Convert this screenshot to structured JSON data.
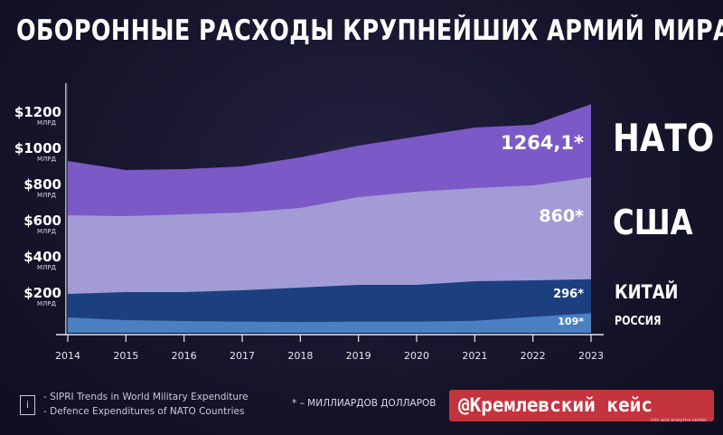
{
  "title": "ОБОРОННЫЕ РАСХОДЫ КРУПНЕЙШИХ АРМИЙ МИРА",
  "chart_data": {
    "type": "area",
    "x": [
      2014,
      2015,
      2016,
      2017,
      2018,
      2019,
      2020,
      2021,
      2022,
      2023
    ],
    "ylim": [
      0,
      1300
    ],
    "ytick_labels": [
      {
        "value": 1200,
        "label": "$1200",
        "unit": "МЛРД"
      },
      {
        "value": 1000,
        "label": "$1000",
        "unit": "МЛРД"
      },
      {
        "value": 800,
        "label": "$800",
        "unit": "МЛРД"
      },
      {
        "value": 600,
        "label": "$600",
        "unit": "МЛРД"
      },
      {
        "value": 400,
        "label": "$400",
        "unit": "МЛРД"
      },
      {
        "value": 200,
        "label": "$200",
        "unit": "МЛРД"
      }
    ],
    "series": [
      {
        "name": "НАТО",
        "color": "#7b59c7",
        "value_label": "1264,1*",
        "values": [
          950,
          900,
          905,
          920,
          970,
          1035,
          1085,
          1135,
          1150,
          1264.1
        ]
      },
      {
        "name": "США",
        "color": "#a39bd6",
        "value_label": "860*",
        "values": [
          650,
          645,
          655,
          665,
          690,
          750,
          780,
          800,
          815,
          860
        ]
      },
      {
        "name": "КИТАЙ",
        "color": "#1c3f7f",
        "value_label": "296*",
        "values": [
          215,
          225,
          225,
          235,
          250,
          265,
          265,
          285,
          290,
          296
        ]
      },
      {
        "name": "РОССИЯ",
        "color": "#4a7fc0",
        "value_label": "109*",
        "values": [
          85,
          70,
          65,
          62,
          60,
          62,
          62,
          66,
          88,
          109
        ]
      }
    ],
    "grid": false
  },
  "sources": [
    "- SIPRI Trends in World Military Expenditure",
    "- Defence Expenditures of NATO Countries"
  ],
  "info_icon": "i",
  "footnote": "* – МИЛЛИАРДОВ ДОЛЛАРОВ",
  "badge": {
    "text": "@Кремлевский кейс",
    "sub": "info and analytics center"
  }
}
